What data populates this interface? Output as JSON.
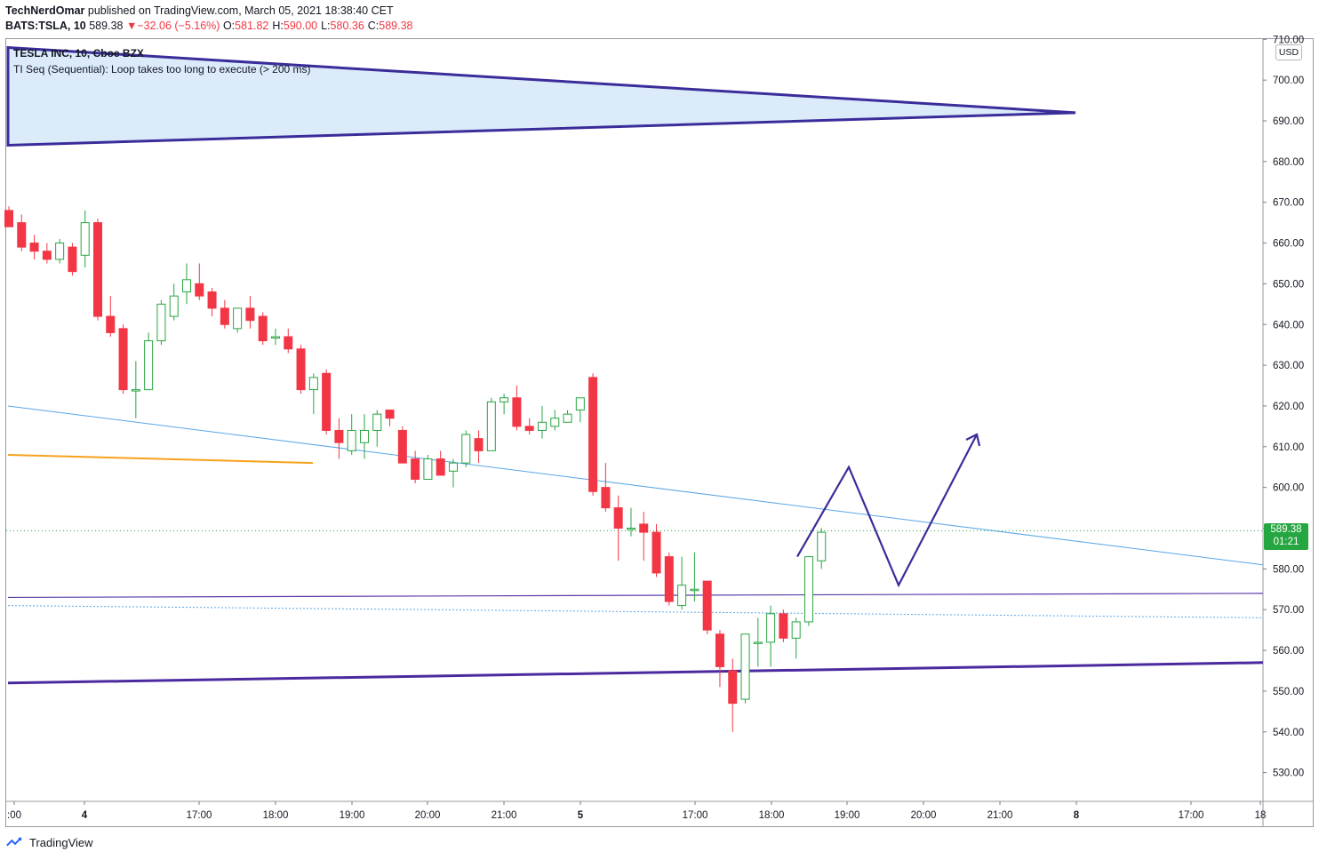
{
  "header": {
    "author": "TechNerdOmar",
    "published": "published on TradingView.com, March 05, 2021 18:38:40 CET",
    "symbol": "BATS:TSLA, 10",
    "last": "589.38",
    "change": "−32.06 (−5.16%)",
    "o_label": "O:",
    "o": "581.82",
    "h_label": "H:",
    "h": "590.00",
    "l_label": "L:",
    "l": "580.36",
    "c_label": "C:",
    "c": "589.38"
  },
  "legend": {
    "title": "TESLA INC, 10, Cboe BZX",
    "indicator": "TI Seq (Sequential): Loop takes too long to execute (> 200 ms)"
  },
  "axis": {
    "currency": "USD",
    "price_tag": "589.38",
    "countdown": "01:21"
  },
  "footer": {
    "brand": "TradingView"
  },
  "colors": {
    "up": "#26a641",
    "down": "#f23645",
    "triangle_fill": "#dcebfa",
    "pattern_line": "#3a2d9a",
    "trend_blue": "#5aa6e6",
    "orange": "#f7a21b"
  },
  "chart_data": {
    "type": "candlestick",
    "title": "TESLA INC, 10, Cboe BZX",
    "ylim": [
      525,
      713
    ],
    "y_ticks": [
      "530.00",
      "540.00",
      "550.00",
      "560.00",
      "570.00",
      "580.00",
      "590.00",
      "600.00",
      "610.00",
      "620.00",
      "630.00",
      "640.00",
      "650.00",
      "660.00",
      "670.00",
      "680.00",
      "690.00",
      "700.00",
      "710.00"
    ],
    "x_ticks": [
      ":00",
      "4",
      "17:00",
      "18:00",
      "19:00",
      "20:00",
      "21:00",
      "5",
      "17:00",
      "18:00",
      "19:00",
      "20:00",
      "21:00",
      "8",
      "17:00",
      "18"
    ],
    "last_price": 589.38,
    "candles": [
      {
        "o": 668,
        "h": 669,
        "l": 664,
        "c": 664
      },
      {
        "o": 665,
        "h": 667,
        "l": 658,
        "c": 659
      },
      {
        "o": 660,
        "h": 662,
        "l": 656,
        "c": 658
      },
      {
        "o": 658,
        "h": 660,
        "l": 655,
        "c": 656
      },
      {
        "o": 656,
        "h": 661,
        "l": 655,
        "c": 660
      },
      {
        "o": 659,
        "h": 660,
        "l": 652,
        "c": 653
      },
      {
        "o": 657,
        "h": 668,
        "l": 654,
        "c": 665
      },
      {
        "o": 665,
        "h": 666,
        "l": 641,
        "c": 642
      },
      {
        "o": 642,
        "h": 647,
        "l": 637,
        "c": 638
      },
      {
        "o": 639,
        "h": 640,
        "l": 623,
        "c": 624
      },
      {
        "o": 624,
        "h": 631,
        "l": 617,
        "c": 624
      },
      {
        "o": 624,
        "h": 638,
        "l": 624,
        "c": 636
      },
      {
        "o": 636,
        "h": 646,
        "l": 635,
        "c": 645
      },
      {
        "o": 642,
        "h": 650,
        "l": 641,
        "c": 647
      },
      {
        "o": 648,
        "h": 655,
        "l": 645,
        "c": 651
      },
      {
        "o": 650,
        "h": 655,
        "l": 646,
        "c": 647
      },
      {
        "o": 648,
        "h": 649,
        "l": 642,
        "c": 644
      },
      {
        "o": 644,
        "h": 646,
        "l": 639,
        "c": 640
      },
      {
        "o": 639,
        "h": 644,
        "l": 638,
        "c": 644
      },
      {
        "o": 644,
        "h": 647,
        "l": 639,
        "c": 641
      },
      {
        "o": 642,
        "h": 643,
        "l": 635,
        "c": 636
      },
      {
        "o": 637,
        "h": 639,
        "l": 635,
        "c": 637
      },
      {
        "o": 637,
        "h": 639,
        "l": 633,
        "c": 634
      },
      {
        "o": 634,
        "h": 635,
        "l": 623,
        "c": 624
      },
      {
        "o": 624,
        "h": 628,
        "l": 618,
        "c": 627
      },
      {
        "o": 628,
        "h": 629,
        "l": 613,
        "c": 614
      },
      {
        "o": 614,
        "h": 617,
        "l": 607,
        "c": 611
      },
      {
        "o": 609,
        "h": 618,
        "l": 608,
        "c": 614
      },
      {
        "o": 611,
        "h": 618,
        "l": 607,
        "c": 614
      },
      {
        "o": 614,
        "h": 619,
        "l": 610,
        "c": 618
      },
      {
        "o": 619,
        "h": 619,
        "l": 615,
        "c": 617
      },
      {
        "o": 614,
        "h": 615,
        "l": 606,
        "c": 606
      },
      {
        "o": 607,
        "h": 609,
        "l": 601,
        "c": 602
      },
      {
        "o": 602,
        "h": 608,
        "l": 602,
        "c": 607
      },
      {
        "o": 607,
        "h": 609,
        "l": 603,
        "c": 603
      },
      {
        "o": 604,
        "h": 607,
        "l": 600,
        "c": 606
      },
      {
        "o": 606,
        "h": 614,
        "l": 605,
        "c": 613
      },
      {
        "o": 612,
        "h": 614,
        "l": 606,
        "c": 609
      },
      {
        "o": 609,
        "h": 622,
        "l": 609,
        "c": 621
      },
      {
        "o": 621,
        "h": 623,
        "l": 618,
        "c": 622
      },
      {
        "o": 622,
        "h": 625,
        "l": 614,
        "c": 615
      },
      {
        "o": 615,
        "h": 617,
        "l": 613,
        "c": 614
      },
      {
        "o": 614,
        "h": 620,
        "l": 612,
        "c": 616
      },
      {
        "o": 615,
        "h": 619,
        "l": 614,
        "c": 617
      },
      {
        "o": 616,
        "h": 619,
        "l": 616,
        "c": 618
      },
      {
        "o": 619,
        "h": 622,
        "l": 616,
        "c": 622
      },
      {
        "o": 627,
        "h": 628,
        "l": 598,
        "c": 599
      },
      {
        "o": 600,
        "h": 606,
        "l": 594,
        "c": 595
      },
      {
        "o": 595,
        "h": 598,
        "l": 582,
        "c": 590
      },
      {
        "o": 590,
        "h": 595,
        "l": 588,
        "c": 590
      },
      {
        "o": 591,
        "h": 594,
        "l": 582,
        "c": 589
      },
      {
        "o": 589,
        "h": 591,
        "l": 578,
        "c": 579
      },
      {
        "o": 583,
        "h": 584,
        "l": 571,
        "c": 572
      },
      {
        "o": 571,
        "h": 583,
        "l": 570,
        "c": 576
      },
      {
        "o": 575,
        "h": 584,
        "l": 572,
        "c": 575
      },
      {
        "o": 577,
        "h": 577,
        "l": 564,
        "c": 565
      },
      {
        "o": 564,
        "h": 565,
        "l": 551,
        "c": 556
      },
      {
        "o": 555,
        "h": 558,
        "l": 540,
        "c": 547
      },
      {
        "o": 548,
        "h": 563,
        "l": 547,
        "c": 564
      },
      {
        "o": 562,
        "h": 568,
        "l": 556,
        "c": 562
      },
      {
        "o": 562,
        "h": 571,
        "l": 556,
        "c": 569
      },
      {
        "o": 569,
        "h": 570,
        "l": 562,
        "c": 563
      },
      {
        "o": 563,
        "h": 568,
        "l": 558,
        "c": 567
      },
      {
        "o": 567,
        "h": 583,
        "l": 566,
        "c": 583
      },
      {
        "o": 582,
        "h": 590,
        "l": 580,
        "c": 589
      }
    ],
    "drawings": {
      "triangle": [
        [
          9,
          708
        ],
        [
          1210,
          692
        ],
        [
          9,
          684
        ]
      ],
      "blue_trend": [
        [
          9,
          620
        ],
        [
          1421,
          581
        ]
      ],
      "dotted_blue": [
        [
          9,
          571
        ],
        [
          1421,
          568
        ]
      ],
      "thin_purple": [
        [
          9,
          573
        ],
        [
          1421,
          574
        ]
      ],
      "thick_purple": [
        [
          9,
          552
        ],
        [
          1421,
          557
        ]
      ],
      "orange": [
        [
          9,
          608
        ],
        [
          352,
          606
        ]
      ],
      "projection": [
        [
          897,
          583
        ],
        [
          955,
          605
        ],
        [
          1011,
          576
        ],
        [
          1099,
          613
        ]
      ]
    }
  }
}
